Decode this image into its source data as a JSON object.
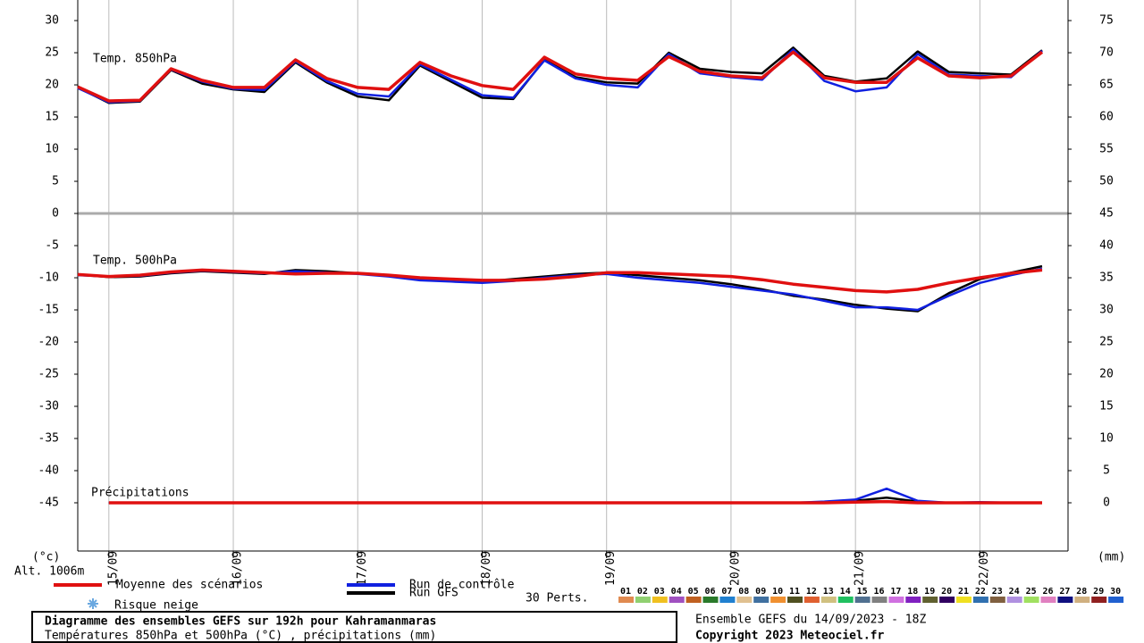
{
  "chart_data": {
    "type": "line",
    "title": "Diagramme des ensembles GEFS sur 192h pour Kahramanmaras",
    "subtitle": "Températures 850hPa et 500hPa (°C) , précipitations (mm)",
    "run_info": "Ensemble GEFS du 14/09/2023 - 18Z",
    "copyright": "Copyright 2023 Meteociel.fr",
    "ylabel": "(°c)",
    "y2label": "(mm)",
    "altitude": "Alt. 1006m",
    "panel_labels": {
      "temp850": "Temp. 850hPa",
      "temp500": "Temp. 500hPa",
      "precip": "Précipitations"
    },
    "x": [
      0,
      6,
      12,
      18,
      24,
      30,
      36,
      42,
      48,
      54,
      60,
      66,
      72,
      78,
      84,
      90,
      96,
      102,
      108,
      114,
      120,
      126,
      132,
      138,
      144,
      150,
      156,
      162,
      168,
      174,
      180,
      186
    ],
    "xlim": [
      0,
      191
    ],
    "xticks": [
      {
        "value": 6,
        "label": "15/09"
      },
      {
        "value": 30,
        "label": "16/09"
      },
      {
        "value": 54,
        "label": "17/09"
      },
      {
        "value": 78,
        "label": "18/09"
      },
      {
        "value": 102,
        "label": "19/09"
      },
      {
        "value": 126,
        "label": "20/09"
      },
      {
        "value": 150,
        "label": "21/09"
      },
      {
        "value": 174,
        "label": "22/09"
      }
    ],
    "ylim": [
      -52.5,
      33.2
    ],
    "yticks": [
      30,
      25,
      20,
      15,
      10,
      5,
      0,
      -5,
      -10,
      -15,
      -20,
      -25,
      -30,
      -35,
      -40,
      -45
    ],
    "y2lim": [
      -7.5,
      78.2
    ],
    "y2ticks": [
      75,
      70,
      65,
      60,
      55,
      50,
      45,
      40,
      35,
      30,
      25,
      20,
      15,
      10,
      5,
      0
    ],
    "series": [
      {
        "name": "Moyenne des scénarios",
        "color": "#e01010",
        "width": 3.5,
        "temp850": [
          19.7,
          17.5,
          17.6,
          22.5,
          20.7,
          19.6,
          19.6,
          23.9,
          21,
          19.6,
          19.3,
          23.5,
          21.4,
          19.9,
          19.3,
          24.3,
          21.7,
          21,
          20.7,
          24.4,
          22.1,
          21.4,
          21.1,
          25.1,
          21.1,
          20.4,
          20.4,
          24.2,
          21.4,
          21.1,
          21.4,
          25.1
        ],
        "temp500": [
          -9.5,
          -9.8,
          -9.6,
          -9.1,
          -8.8,
          -9,
          -9.2,
          -9.4,
          -9.3,
          -9.3,
          -9.6,
          -10,
          -10.2,
          -10.4,
          -10.4,
          -10.2,
          -9.8,
          -9.2,
          -9.2,
          -9.4,
          -9.6,
          -9.8,
          -10.3,
          -11,
          -11.5,
          -12,
          -12.2,
          -11.8,
          -10.8,
          -10,
          -9.3,
          -8.8
        ],
        "precip": [
          null,
          0,
          0,
          0,
          0,
          0,
          0,
          0,
          0,
          0,
          0,
          0,
          0,
          0,
          0,
          0,
          0,
          0,
          0,
          0,
          0,
          0,
          0,
          0,
          0,
          0.1,
          0.2,
          0,
          0,
          0,
          0,
          0
        ]
      },
      {
        "name": "Run de contrôle",
        "color": "#1020e0",
        "width": 2.5,
        "temp850": [
          19.5,
          17.3,
          17.5,
          22.4,
          20.5,
          19.4,
          19.2,
          23.7,
          20.6,
          18.6,
          18.2,
          23.2,
          20.8,
          18.4,
          18,
          23.8,
          21,
          20,
          19.6,
          24.8,
          21.8,
          21.2,
          20.8,
          25.5,
          20.6,
          19,
          19.6,
          24.8,
          21.6,
          21.4,
          21.2,
          25.3
        ],
        "temp500": [
          -9.6,
          -9.8,
          -9.7,
          -9.2,
          -8.9,
          -9.1,
          -9.3,
          -9,
          -9.2,
          -9.4,
          -9.8,
          -10.4,
          -10.6,
          -10.8,
          -10.5,
          -10,
          -9.6,
          -9.4,
          -10,
          -10.4,
          -10.8,
          -11.4,
          -12,
          -12.6,
          -13.6,
          -14.6,
          -14.6,
          -15,
          -12.8,
          -10.8,
          -9.6,
          -8.6
        ],
        "precip": [
          null,
          0,
          0,
          0,
          0,
          0,
          0,
          0,
          0,
          0,
          0,
          0,
          0,
          0,
          0,
          0,
          0,
          0,
          0,
          0,
          0,
          0,
          0,
          0,
          0.2,
          0.5,
          2.2,
          0.3,
          0,
          0.1,
          0,
          0
        ]
      },
      {
        "name": "Run GFS",
        "color": "#000000",
        "width": 2.5,
        "temp850": [
          19.6,
          17.2,
          17.4,
          22.3,
          20.2,
          19.3,
          18.9,
          23.5,
          20.4,
          18.2,
          17.6,
          23,
          20.5,
          18,
          17.8,
          23.9,
          21.2,
          20.4,
          20.2,
          25,
          22.5,
          22,
          21.8,
          25.8,
          21.4,
          20.5,
          21,
          25.2,
          22,
          21.8,
          21.6,
          25.4
        ],
        "temp500": [
          -9.5,
          -9.9,
          -9.8,
          -9.3,
          -9,
          -9.2,
          -9.4,
          -8.8,
          -9,
          -9.3,
          -9.7,
          -10.2,
          -10.4,
          -10.6,
          -10.2,
          -9.8,
          -9.4,
          -9.2,
          -9.6,
          -10,
          -10.4,
          -11,
          -11.8,
          -12.8,
          -13.4,
          -14.2,
          -14.8,
          -15.2,
          -12.4,
          -10.2,
          -9.2,
          -8.2
        ],
        "precip": [
          null,
          0,
          0,
          0,
          0,
          0,
          0,
          0,
          0,
          0,
          0,
          0,
          0,
          0,
          0,
          0,
          0,
          0,
          0,
          0,
          0,
          0,
          0,
          0,
          0,
          0.3,
          0.8,
          0.2,
          0,
          0,
          0,
          0
        ]
      }
    ],
    "perturbations_label": "30 Perts.",
    "snow_label": "Risque neige",
    "perturbations": [
      {
        "label": "01",
        "color": "#e08a50"
      },
      {
        "label": "02",
        "color": "#90d070"
      },
      {
        "label": "03",
        "color": "#f0c020"
      },
      {
        "label": "04",
        "color": "#a050c0"
      },
      {
        "label": "05",
        "color": "#c06020"
      },
      {
        "label": "06",
        "color": "#2a7a2a"
      },
      {
        "label": "07",
        "color": "#2080d0"
      },
      {
        "label": "08",
        "color": "#e0c090"
      },
      {
        "label": "09",
        "color": "#4070a0"
      },
      {
        "label": "10",
        "color": "#f09030"
      },
      {
        "label": "11",
        "color": "#505020"
      },
      {
        "label": "12",
        "color": "#e06030"
      },
      {
        "label": "13",
        "color": "#d0c080"
      },
      {
        "label": "14",
        "color": "#20c060"
      },
      {
        "label": "15",
        "color": "#507090"
      },
      {
        "label": "16",
        "color": "#808080"
      },
      {
        "label": "17",
        "color": "#d070e0"
      },
      {
        "label": "18",
        "color": "#8020c0"
      },
      {
        "label": "19",
        "color": "#606030"
      },
      {
        "label": "20",
        "color": "#300060"
      },
      {
        "label": "21",
        "color": "#f0e020"
      },
      {
        "label": "22",
        "color": "#3070b0"
      },
      {
        "label": "23",
        "color": "#806040"
      },
      {
        "label": "24",
        "color": "#b090e0"
      },
      {
        "label": "25",
        "color": "#a0e060"
      },
      {
        "label": "26",
        "color": "#e080c0"
      },
      {
        "label": "27",
        "color": "#101080"
      },
      {
        "label": "28",
        "color": "#d0b080"
      },
      {
        "label": "29",
        "color": "#902020"
      },
      {
        "label": "30",
        "color": "#2060d0"
      }
    ]
  }
}
